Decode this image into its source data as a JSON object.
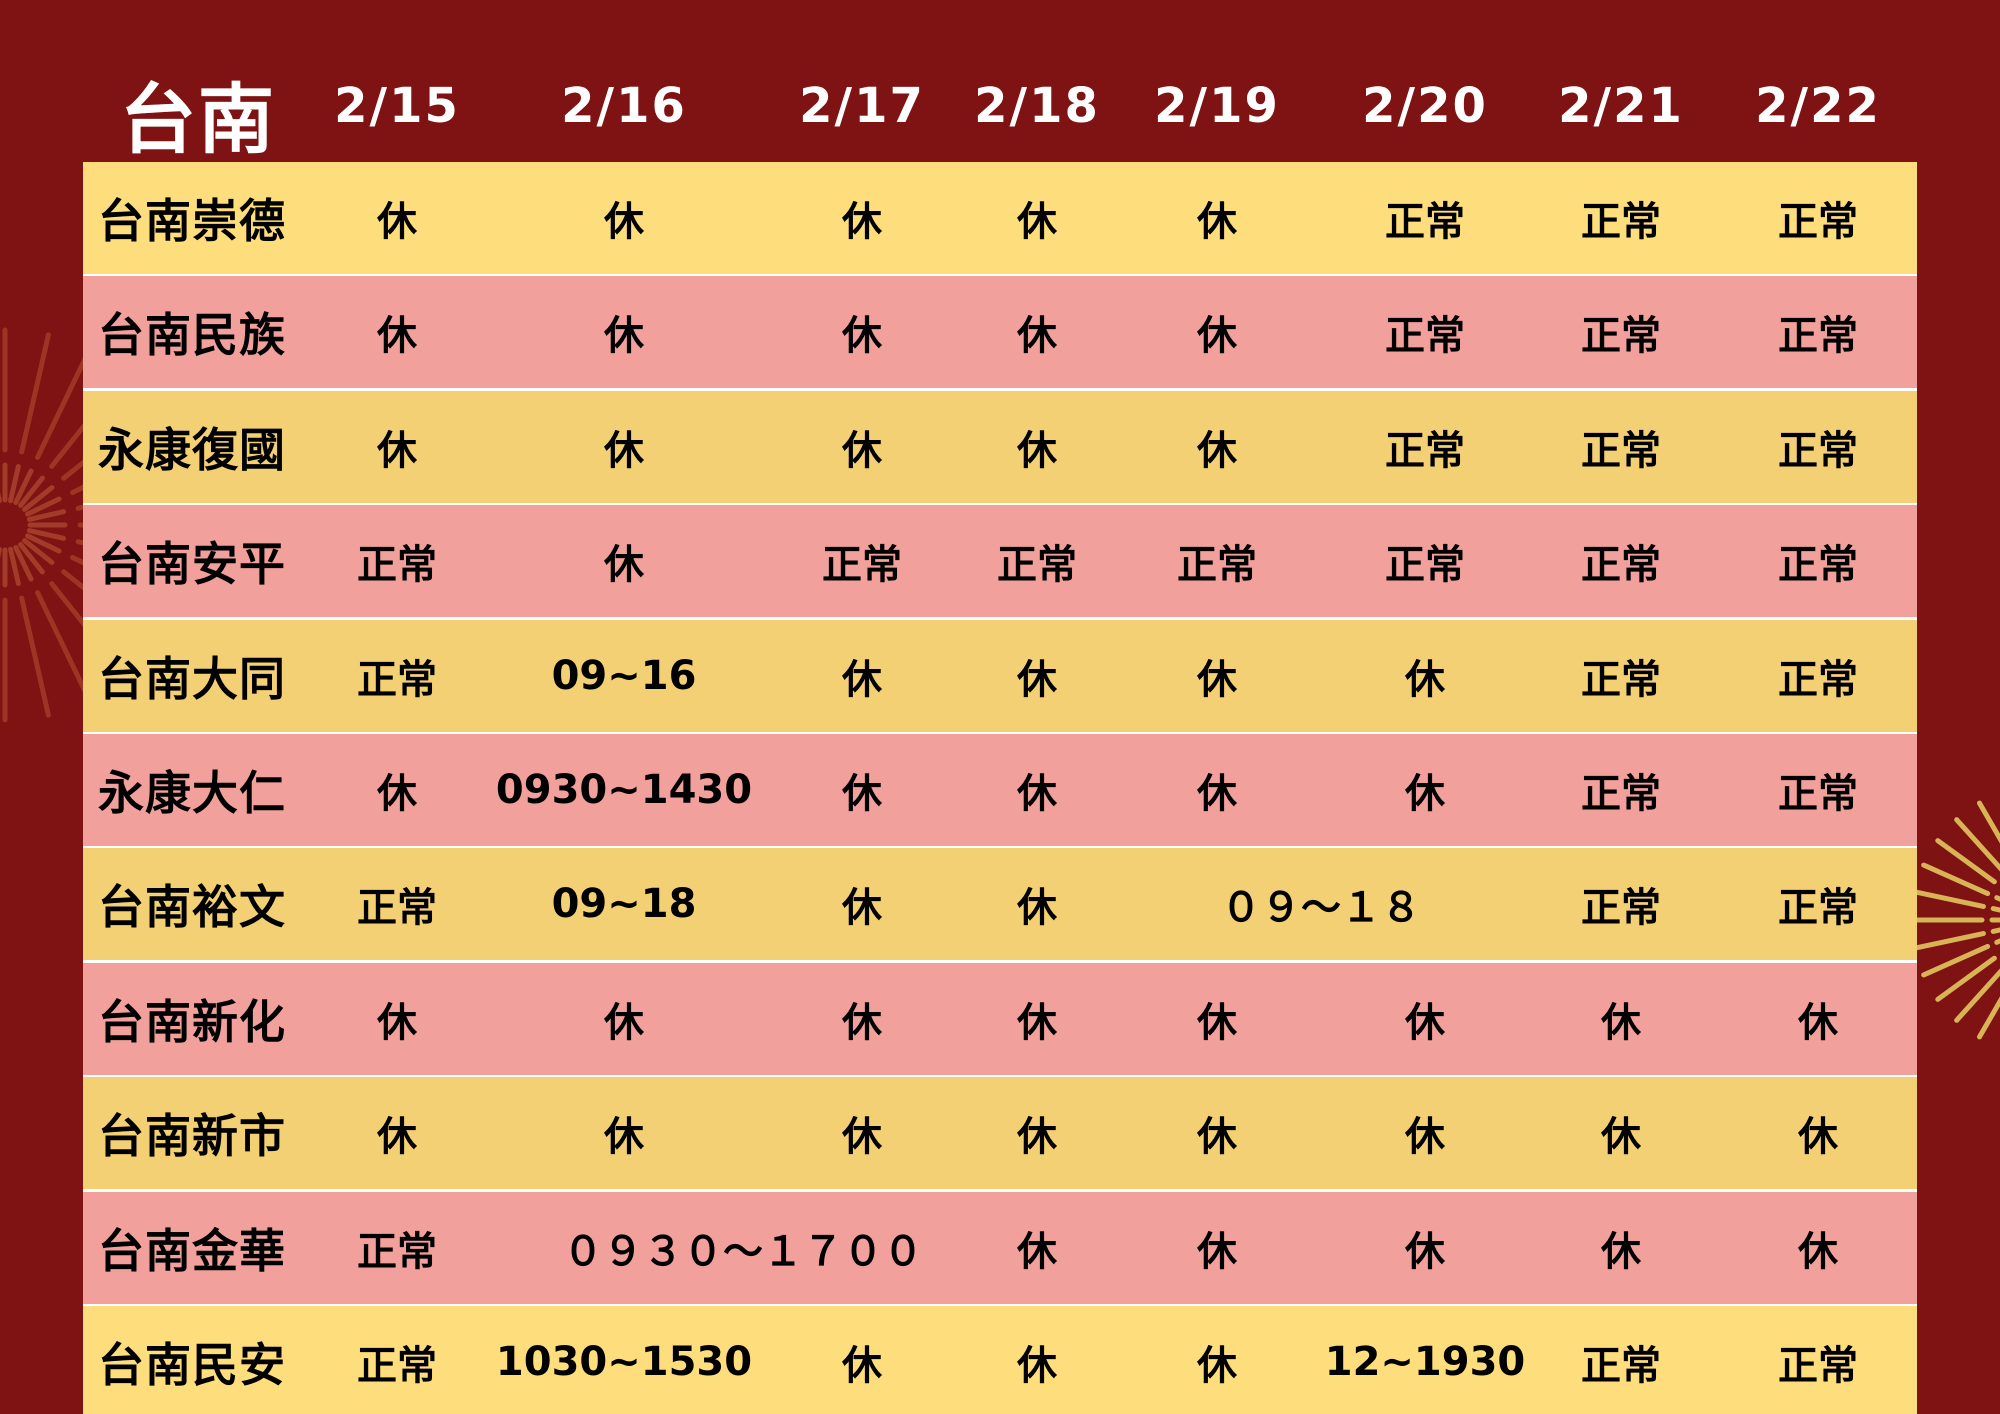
{
  "title": "台南",
  "dates": [
    "2/15",
    "2/16",
    "2/17",
    "2/18",
    "2/19",
    "2/20",
    "2/21",
    "2/22"
  ],
  "colors": {
    "background": "#7f1212",
    "row_yellow": "#fedd7c",
    "row_yellow_dark": "#f4d074",
    "row_pink": "#f2a09b",
    "firework": "#d9b456"
  },
  "rows": [
    {
      "name": "台南崇德",
      "cells": [
        {
          "text": "休"
        },
        {
          "text": "休"
        },
        {
          "text": "休"
        },
        {
          "text": "休"
        },
        {
          "text": "休"
        },
        {
          "text": "正常"
        },
        {
          "text": "正常"
        },
        {
          "text": "正常"
        }
      ]
    },
    {
      "name": "台南民族",
      "cells": [
        {
          "text": "休"
        },
        {
          "text": "休"
        },
        {
          "text": "休"
        },
        {
          "text": "休"
        },
        {
          "text": "休"
        },
        {
          "text": "正常"
        },
        {
          "text": "正常"
        },
        {
          "text": "正常"
        }
      ]
    },
    {
      "name": "永康復國",
      "cells": [
        {
          "text": "休"
        },
        {
          "text": "休"
        },
        {
          "text": "休"
        },
        {
          "text": "休"
        },
        {
          "text": "休"
        },
        {
          "text": "正常"
        },
        {
          "text": "正常"
        },
        {
          "text": "正常"
        }
      ]
    },
    {
      "name": "台南安平",
      "cells": [
        {
          "text": "正常"
        },
        {
          "text": "休"
        },
        {
          "text": "正常"
        },
        {
          "text": "正常"
        },
        {
          "text": "正常"
        },
        {
          "text": "正常"
        },
        {
          "text": "正常"
        },
        {
          "text": "正常"
        }
      ]
    },
    {
      "name": "台南大同",
      "cells": [
        {
          "text": "正常"
        },
        {
          "text": "09~16"
        },
        {
          "text": "休"
        },
        {
          "text": "休"
        },
        {
          "text": "休"
        },
        {
          "text": "休"
        },
        {
          "text": "正常"
        },
        {
          "text": "正常"
        }
      ]
    },
    {
      "name": "永康大仁",
      "cells": [
        {
          "text": "休"
        },
        {
          "text": "0930~1430"
        },
        {
          "text": "休"
        },
        {
          "text": "休"
        },
        {
          "text": "休"
        },
        {
          "text": "休"
        },
        {
          "text": "正常"
        },
        {
          "text": "正常"
        }
      ]
    },
    {
      "name": "台南裕文",
      "cells": [
        {
          "text": "正常"
        },
        {
          "text": "09~18"
        },
        {
          "text": "休"
        },
        {
          "text": "休"
        },
        {
          "text": "０９～１８",
          "span": 2
        },
        {
          "text": "正常"
        },
        {
          "text": "正常"
        }
      ]
    },
    {
      "name": "台南新化",
      "cells": [
        {
          "text": "休"
        },
        {
          "text": "休"
        },
        {
          "text": "休"
        },
        {
          "text": "休"
        },
        {
          "text": "休"
        },
        {
          "text": "休"
        },
        {
          "text": "休"
        },
        {
          "text": "休"
        }
      ]
    },
    {
      "name": "台南新市",
      "cells": [
        {
          "text": "休"
        },
        {
          "text": "休"
        },
        {
          "text": "休"
        },
        {
          "text": "休"
        },
        {
          "text": "休"
        },
        {
          "text": "休"
        },
        {
          "text": "休"
        },
        {
          "text": "休"
        }
      ]
    },
    {
      "name": "台南金華",
      "cells": [
        {
          "text": "正常"
        },
        {
          "text": "０９３０～１７００",
          "span": 2
        },
        {
          "text": "休"
        },
        {
          "text": "休"
        },
        {
          "text": "休"
        },
        {
          "text": "休"
        },
        {
          "text": "休"
        }
      ]
    },
    {
      "name": "台南民安",
      "cells": [
        {
          "text": "正常"
        },
        {
          "text": "1030~1530"
        },
        {
          "text": "休"
        },
        {
          "text": "休"
        },
        {
          "text": "休"
        },
        {
          "text": "12~1930"
        },
        {
          "text": "正常"
        },
        {
          "text": "正常"
        }
      ]
    }
  ]
}
